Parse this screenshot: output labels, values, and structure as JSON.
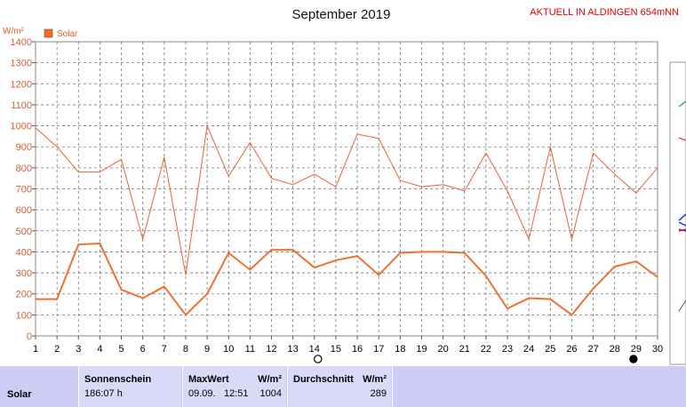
{
  "header": {
    "title": "September 2019",
    "station": "AKTUELL IN ALDINGEN 654mNN"
  },
  "chart_data": {
    "type": "line",
    "title": "September 2019",
    "ylabel": "W/m²",
    "ylim": [
      0,
      1400
    ],
    "yticks": [
      0,
      100,
      200,
      300,
      400,
      500,
      600,
      700,
      800,
      900,
      1000,
      1100,
      1200,
      1300,
      1400
    ],
    "x": [
      1,
      2,
      3,
      4,
      5,
      6,
      7,
      8,
      9,
      10,
      11,
      12,
      13,
      14,
      15,
      16,
      17,
      18,
      19,
      20,
      21,
      22,
      23,
      24,
      25,
      26,
      27,
      28,
      29,
      30
    ],
    "xlim": [
      1,
      30
    ],
    "grid": true,
    "legend": {
      "placement": "top-left",
      "entries": [
        "Solar"
      ]
    },
    "series": [
      {
        "name": "Solar",
        "role": "max",
        "color": "#f06030",
        "values": [
          990,
          900,
          780,
          780,
          840,
          460,
          850,
          290,
          1000,
          760,
          920,
          750,
          720,
          770,
          710,
          960,
          940,
          740,
          710,
          720,
          690,
          870,
          690,
          460,
          900,
          460,
          870,
          770,
          680,
          800
        ]
      },
      {
        "name": "Solar",
        "role": "average",
        "color": "#f07030",
        "values": [
          175,
          175,
          435,
          440,
          220,
          180,
          235,
          100,
          200,
          395,
          315,
          410,
          410,
          325,
          360,
          380,
          290,
          395,
          400,
          400,
          395,
          285,
          130,
          180,
          175,
          100,
          225,
          330,
          355,
          280
        ]
      }
    ],
    "moon_markers": [
      {
        "day": 14,
        "phase": "full-moon"
      },
      {
        "day": 29,
        "phase": "new-moon"
      }
    ]
  },
  "stats": {
    "row_label": "Solar",
    "sunshine_header": "Sonnenschein",
    "sunshine_value": "186:07 h",
    "max_header": "MaxWert",
    "max_unit": "W/m²",
    "max_date": "09.09.",
    "max_time": "12:51",
    "max_value": "1004",
    "avg_header": "Durchschnitt",
    "avg_unit": "W/m²",
    "avg_value": "289"
  }
}
